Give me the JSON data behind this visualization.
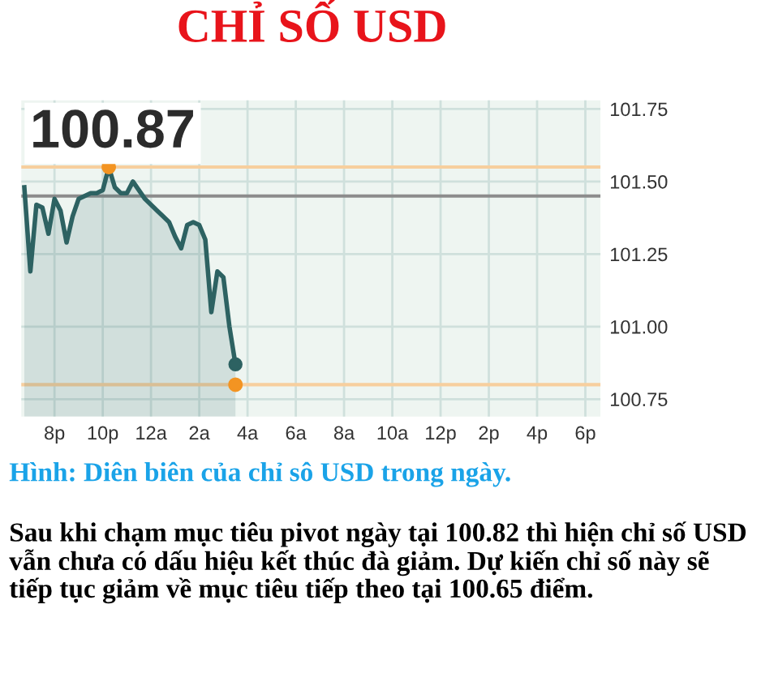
{
  "chart_data": {
    "type": "area",
    "title": "CHỈ SỐ USD",
    "categories": [
      null,
      null,
      null,
      null,
      null,
      "8p",
      null,
      null,
      null,
      null,
      null,
      null,
      null,
      "10p",
      null,
      null,
      null,
      null,
      null,
      null,
      null,
      "12a",
      null,
      null,
      null,
      null,
      null,
      null,
      null,
      "2a",
      null,
      null,
      null,
      null,
      null,
      null,
      null,
      "4a",
      null,
      null,
      null,
      null,
      null,
      null,
      null,
      "6a",
      null,
      null,
      null,
      null,
      null,
      null,
      null,
      "8a",
      null,
      null,
      null,
      null,
      null,
      null,
      null,
      "10a",
      null,
      null,
      null,
      null,
      null,
      null,
      null,
      "12p",
      null,
      null,
      null,
      null,
      null,
      null,
      null,
      "2p",
      null,
      null,
      null,
      null,
      null,
      null,
      null,
      "4p",
      null,
      null,
      null,
      null,
      null,
      null,
      null,
      "6p",
      null,
      null
    ],
    "ylim": [
      100.69,
      101.78
    ],
    "yticks": [
      {
        "value": 100.75,
        "label": "100.75"
      },
      {
        "value": 101.0,
        "label": "101.00"
      },
      {
        "value": 101.25,
        "label": "101.25"
      },
      {
        "value": 101.5,
        "label": "101.50"
      },
      {
        "value": 101.75,
        "label": "101.75"
      }
    ],
    "grid": true,
    "series": [
      {
        "color": "#2d6262",
        "values": [
          101.48,
          101.19,
          101.42,
          101.41,
          101.32,
          101.44,
          101.4,
          101.29,
          101.38,
          101.44,
          101.45,
          101.46,
          101.46,
          101.47,
          101.55,
          101.48,
          101.46,
          101.46,
          101.5,
          101.47,
          101.44,
          101.42,
          101.4,
          101.38,
          101.36,
          101.31,
          101.27,
          101.35,
          101.36,
          101.35,
          101.3,
          101.05,
          101.19,
          101.17,
          101.0,
          100.87,
          null,
          null,
          null,
          null,
          null,
          null,
          null,
          null,
          null,
          null,
          null,
          null,
          null,
          null,
          null,
          null,
          null,
          null,
          null,
          null,
          null,
          null,
          null,
          null,
          null,
          null,
          null,
          null,
          null,
          null,
          null,
          null,
          null,
          null,
          null,
          null,
          null,
          null,
          null,
          null,
          null,
          null,
          null,
          null,
          null,
          null,
          null,
          null,
          null,
          null,
          null,
          null,
          null,
          null,
          null,
          null,
          null,
          null,
          null,
          null
        ]
      },
      {
        "type": "scatter",
        "color": "#f39422",
        "values": [
          null,
          null,
          null,
          null,
          null,
          null,
          null,
          null,
          null,
          null,
          null,
          null,
          null,
          null,
          101.55,
          null,
          null,
          null,
          null,
          null,
          null,
          null,
          null,
          null,
          null,
          null,
          null,
          null,
          null,
          null,
          null,
          null,
          null,
          null,
          null,
          100.8,
          null,
          null,
          null,
          null,
          null,
          null,
          null,
          null,
          null,
          null,
          null,
          null,
          null,
          null,
          null,
          null,
          null,
          null,
          null,
          null,
          null,
          null,
          null,
          null,
          null,
          null,
          null,
          null,
          null,
          null,
          null,
          null,
          null,
          null,
          null,
          null,
          null,
          null,
          null,
          null,
          null,
          null,
          null,
          null,
          null,
          null,
          null,
          null,
          null,
          null,
          null,
          null,
          null,
          null,
          null,
          null,
          null,
          null,
          null,
          null
        ]
      }
    ],
    "ref_lines": [
      {
        "axis": "y",
        "value": 101.55,
        "color": "#f7cf9e"
      },
      {
        "axis": "y",
        "value": 101.45,
        "color": "#8c8c8c"
      },
      {
        "axis": "y",
        "value": 100.8,
        "color": "#f7cf9e"
      }
    ],
    "annotations": [
      "100.87",
      "Hình: Diên biên của chỉ sô USD trong ngày.",
      "Sau khi chạm mục tiêu pivot ngày tại 100.82 thì hiện chỉ số USD vẫn chưa có dấu hiệu kết thúc đà giảm. Dự kiến chỉ số này sẽ tiếp tục giảm về mục tiêu tiếp theo tại 100.65 điểm."
    ]
  }
}
